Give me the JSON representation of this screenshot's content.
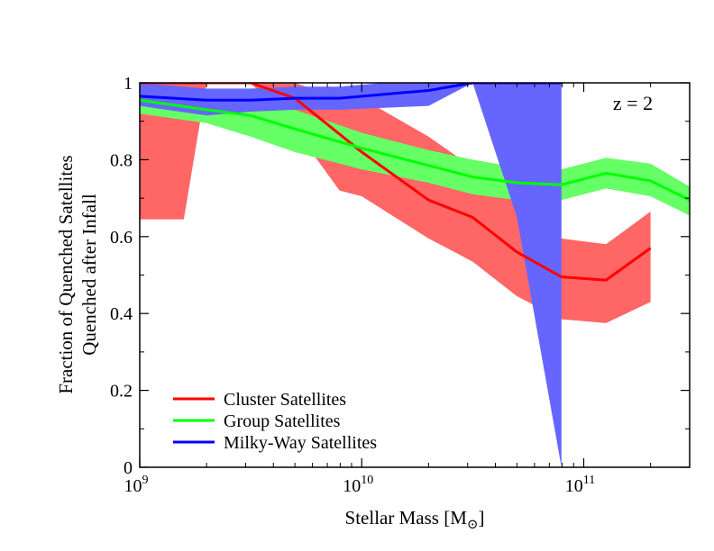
{
  "chart_data": {
    "type": "line",
    "xlabel": "Stellar Mass [M",
    "xlabel_sub": "⊙",
    "xlabel_close": "]",
    "ylabel_line1": "Fraction of Quenched Satellites",
    "ylabel_line2": "Quenched after Infall",
    "annotation": "z = 2",
    "x_scale": "log",
    "xlim": [
      1000000000,
      300000000000
    ],
    "ylim": [
      0,
      1
    ],
    "x_ticks": [
      {
        "value": 1000000000,
        "base": "10",
        "exp": "9"
      },
      {
        "value": 10000000000,
        "base": "10",
        "exp": "10"
      },
      {
        "value": 100000000000,
        "base": "10",
        "exp": "11"
      }
    ],
    "y_ticks": [
      {
        "value": 0,
        "label": "0"
      },
      {
        "value": 0.2,
        "label": "0.2"
      },
      {
        "value": 0.4,
        "label": "0.4"
      },
      {
        "value": 0.6,
        "label": "0.6"
      },
      {
        "value": 0.8,
        "label": "0.8"
      },
      {
        "value": 1,
        "label": "1"
      }
    ],
    "grid": false,
    "legend_position": "bottom-left",
    "series": [
      {
        "name": "Cluster Satellites",
        "color": "#ff0000",
        "band_color": "#ff6666",
        "x": [
          1000000000,
          2000000000,
          3160000000,
          5000000000,
          10000000000,
          20000000000,
          31600000000,
          50000000000,
          79400000000,
          126000000000,
          200000000000
        ],
        "y": [
          1.0,
          1.0,
          1.0,
          0.96,
          0.82,
          0.695,
          0.65,
          0.56,
          0.495,
          0.487,
          0.57
        ],
        "upper": [
          1.0,
          1.0,
          1.0,
          1.0,
          0.96,
          0.86,
          0.78,
          0.72,
          0.595,
          0.58,
          0.665
        ],
        "lower": [
          0.645,
          0.645,
          1.0,
          0.88,
          0.72,
          0.595,
          0.535,
          0.445,
          0.385,
          0.375,
          0.43
        ],
        "band_x": [
          1000000000,
          1180000000,
          1580000000,
          2000000000,
          3160000000,
          5000000000,
          7940000000,
          10000000000,
          20000000000,
          31600000000,
          50000000000,
          79400000000,
          126000000000,
          200000000000
        ],
        "band_upper": [
          1.0,
          1.0,
          1.0,
          1.0,
          1.0,
          1.0,
          0.96,
          0.96,
          0.86,
          0.78,
          0.72,
          0.595,
          0.58,
          0.665
        ],
        "band_lower": [
          0.645,
          0.645,
          0.645,
          1.0,
          1.0,
          0.88,
          0.72,
          0.705,
          0.595,
          0.535,
          0.445,
          0.385,
          0.375,
          0.43
        ]
      },
      {
        "name": "Group Satellites",
        "color": "#00ff00",
        "band_color": "#66ff66",
        "x": [
          1000000000,
          2000000000,
          3160000000,
          5000000000,
          10000000000,
          20000000000,
          31600000000,
          50000000000,
          79400000000,
          126000000000,
          200000000000,
          300000000000
        ],
        "y": [
          0.955,
          0.93,
          0.915,
          0.88,
          0.83,
          0.785,
          0.755,
          0.74,
          0.735,
          0.765,
          0.745,
          0.695
        ],
        "band_x": [
          1000000000,
          2000000000,
          3160000000,
          5000000000,
          10000000000,
          20000000000,
          31600000000,
          50000000000,
          79400000000,
          126000000000,
          200000000000,
          300000000000
        ],
        "band_upper": [
          0.985,
          0.975,
          0.96,
          0.93,
          0.87,
          0.825,
          0.8,
          0.78,
          0.775,
          0.805,
          0.79,
          0.73
        ],
        "band_lower": [
          0.92,
          0.895,
          0.86,
          0.82,
          0.775,
          0.74,
          0.71,
          0.695,
          0.695,
          0.725,
          0.705,
          0.655
        ]
      },
      {
        "name": "Milky-Way Satellites",
        "color": "#0000ff",
        "band_color": "#6666ff",
        "x": [
          1000000000,
          2000000000,
          3160000000,
          5000000000,
          7940000000,
          12600000000,
          20000000000,
          31600000000,
          50000000000,
          79400000000
        ],
        "y": [
          0.965,
          0.955,
          0.955,
          0.96,
          0.96,
          0.97,
          0.98,
          1.0,
          1.0,
          1.0
        ],
        "band_x": [
          1000000000,
          2000000000,
          3160000000,
          5000000000,
          7940000000,
          12600000000,
          20000000000,
          31600000000,
          50000000000,
          79400000000
        ],
        "band_upper": [
          1.0,
          0.985,
          0.985,
          0.99,
          0.99,
          1.0,
          1.0,
          1.0,
          1.0,
          1.0
        ],
        "band_lower": [
          0.94,
          0.915,
          0.925,
          0.93,
          0.93,
          0.935,
          0.94,
          1.0,
          0.65,
          0.0
        ]
      }
    ]
  }
}
